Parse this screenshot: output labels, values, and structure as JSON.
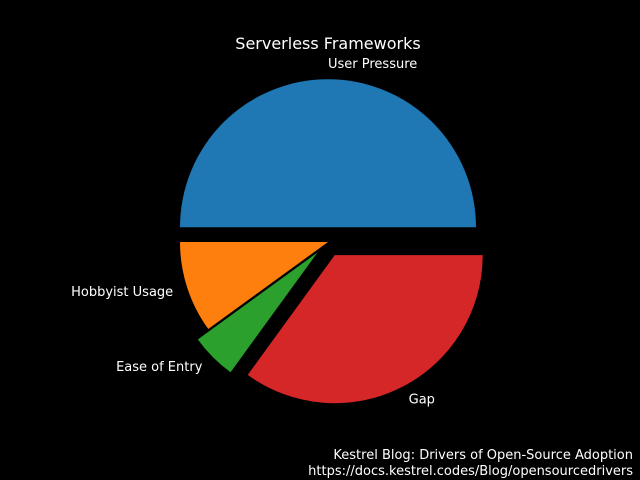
{
  "chart_data": {
    "type": "pie",
    "title": "Serverless Frameworks",
    "categories": [
      "User Pressure",
      "Hobbyist Usage",
      "Ease of Entry",
      "Gap"
    ],
    "values": [
      50,
      10,
      5,
      35
    ],
    "exploded": [
      true,
      false,
      true,
      true
    ],
    "colors": [
      "#1f77b4",
      "#ff7f0e",
      "#2ca02c",
      "#d62728"
    ],
    "start_angle_deg": 0,
    "direction": "counterclockwise",
    "legend": "none"
  },
  "credit": {
    "line1": "Kestrel Blog: Drivers of Open-Source Adoption",
    "line2": "https://docs.kestrel.codes/Blog/opensourcedrivers"
  }
}
